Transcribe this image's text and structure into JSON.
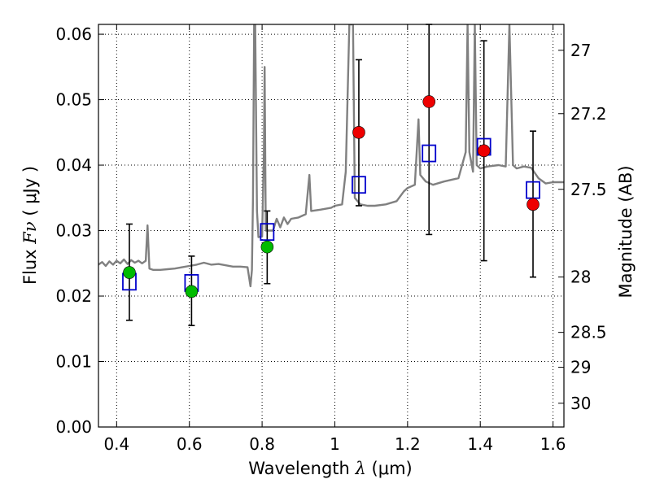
{
  "chart_data": {
    "type": "scatter",
    "xlabel": "Wavelength",
    "xlabel_symbol": "λ",
    "xlabel_unit": "(μm)",
    "ylabel": "Flux",
    "ylabel_symbol": "Fν",
    "ylabel_unit": "( μJy )",
    "ylabel_right": "Magnitude (AB)",
    "xlim": [
      0.35,
      1.63
    ],
    "ylim": [
      0.0,
      0.0615
    ],
    "grid": true,
    "grid_style": "dotted",
    "x_ticks": [
      {
        "value": 0.4,
        "label": "0.4"
      },
      {
        "value": 0.6,
        "label": "0.6"
      },
      {
        "value": 0.8,
        "label": "0.8"
      },
      {
        "value": 1.0,
        "label": "1"
      },
      {
        "value": 1.2,
        "label": "1.2"
      },
      {
        "value": 1.4,
        "label": "1.4"
      },
      {
        "value": 1.6,
        "label": "1.6"
      }
    ],
    "y_ticks": [
      {
        "value": 0.0,
        "label": "0.00"
      },
      {
        "value": 0.01,
        "label": "0.01"
      },
      {
        "value": 0.02,
        "label": "0.02"
      },
      {
        "value": 0.03,
        "label": "0.03"
      },
      {
        "value": 0.04,
        "label": "0.04"
      },
      {
        "value": 0.05,
        "label": "0.05"
      },
      {
        "value": 0.06,
        "label": "0.06"
      }
    ],
    "magnitude_ticks": [
      {
        "value": 27,
        "label": "27"
      },
      {
        "value": 27.2,
        "label": "27.2"
      },
      {
        "value": 27.5,
        "label": "27.5"
      },
      {
        "value": 28,
        "label": "28"
      },
      {
        "value": 28.5,
        "label": "28.5"
      },
      {
        "value": 29,
        "label": "29"
      },
      {
        "value": 30,
        "label": "30"
      }
    ],
    "observed": [
      {
        "x": 0.435,
        "y": 0.0236,
        "yerr_low": 0.0163,
        "yerr_high": 0.031,
        "color": "#00bb00"
      },
      {
        "x": 0.606,
        "y": 0.0207,
        "yerr_low": 0.0155,
        "yerr_high": 0.0261,
        "color": "#00bb00"
      },
      {
        "x": 0.814,
        "y": 0.0275,
        "yerr_low": 0.0219,
        "yerr_high": 0.033,
        "color": "#00bb00"
      },
      {
        "x": 1.066,
        "y": 0.045,
        "yerr_low": 0.0338,
        "yerr_high": 0.0561,
        "color": "#ee0000"
      },
      {
        "x": 1.259,
        "y": 0.0497,
        "yerr_low": 0.0294,
        "yerr_high": 0.0615,
        "color": "#ee0000"
      },
      {
        "x": 1.41,
        "y": 0.0422,
        "yerr_low": 0.0254,
        "yerr_high": 0.059,
        "color": "#ee0000"
      },
      {
        "x": 1.545,
        "y": 0.034,
        "yerr_low": 0.0229,
        "yerr_high": 0.0452,
        "color": "#ee0000"
      }
    ],
    "model_photometry": {
      "color": "#0000cc",
      "points": [
        {
          "x": 0.435,
          "y": 0.0222
        },
        {
          "x": 0.606,
          "y": 0.022
        },
        {
          "x": 0.814,
          "y": 0.0298
        },
        {
          "x": 1.066,
          "y": 0.037
        },
        {
          "x": 1.259,
          "y": 0.0418
        },
        {
          "x": 1.41,
          "y": 0.0428
        },
        {
          "x": 1.545,
          "y": 0.0362
        }
      ]
    },
    "sed_model": {
      "color": "#808080",
      "points": [
        [
          0.35,
          0.0248
        ],
        [
          0.36,
          0.0252
        ],
        [
          0.37,
          0.0246
        ],
        [
          0.38,
          0.0253
        ],
        [
          0.39,
          0.0248
        ],
        [
          0.4,
          0.0254
        ],
        [
          0.41,
          0.025
        ],
        [
          0.42,
          0.0256
        ],
        [
          0.43,
          0.0249
        ],
        [
          0.44,
          0.0255
        ],
        [
          0.45,
          0.0251
        ],
        [
          0.46,
          0.0254
        ],
        [
          0.47,
          0.025
        ],
        [
          0.48,
          0.0254
        ],
        [
          0.485,
          0.0308
        ],
        [
          0.49,
          0.0242
        ],
        [
          0.5,
          0.024
        ],
        [
          0.52,
          0.024
        ],
        [
          0.54,
          0.0241
        ],
        [
          0.56,
          0.0242
        ],
        [
          0.58,
          0.0244
        ],
        [
          0.6,
          0.0246
        ],
        [
          0.62,
          0.0248
        ],
        [
          0.64,
          0.0251
        ],
        [
          0.66,
          0.0248
        ],
        [
          0.68,
          0.0249
        ],
        [
          0.7,
          0.0247
        ],
        [
          0.72,
          0.0245
        ],
        [
          0.74,
          0.0245
        ],
        [
          0.76,
          0.0244
        ],
        [
          0.768,
          0.0215
        ],
        [
          0.772,
          0.024
        ],
        [
          0.775,
          0.035
        ],
        [
          0.778,
          0.0615
        ],
        [
          0.781,
          0.0615
        ],
        [
          0.786,
          0.033
        ],
        [
          0.79,
          0.029
        ],
        [
          0.8,
          0.0291
        ],
        [
          0.805,
          0.042
        ],
        [
          0.807,
          0.055
        ],
        [
          0.81,
          0.03
        ],
        [
          0.83,
          0.03
        ],
        [
          0.84,
          0.0318
        ],
        [
          0.85,
          0.0305
        ],
        [
          0.86,
          0.032
        ],
        [
          0.87,
          0.031
        ],
        [
          0.88,
          0.0318
        ],
        [
          0.9,
          0.032
        ],
        [
          0.92,
          0.0325
        ],
        [
          0.93,
          0.0385
        ],
        [
          0.935,
          0.033
        ],
        [
          0.96,
          0.0332
        ],
        [
          0.99,
          0.0335
        ],
        [
          1.0,
          0.0338
        ],
        [
          1.02,
          0.034
        ],
        [
          1.03,
          0.039
        ],
        [
          1.04,
          0.0615
        ],
        [
          1.05,
          0.0615
        ],
        [
          1.055,
          0.035
        ],
        [
          1.07,
          0.034
        ],
        [
          1.09,
          0.0338
        ],
        [
          1.11,
          0.0338
        ],
        [
          1.14,
          0.034
        ],
        [
          1.17,
          0.0345
        ],
        [
          1.19,
          0.036
        ],
        [
          1.2,
          0.0365
        ],
        [
          1.22,
          0.037
        ],
        [
          1.23,
          0.047
        ],
        [
          1.235,
          0.0385
        ],
        [
          1.25,
          0.0375
        ],
        [
          1.27,
          0.037
        ],
        [
          1.3,
          0.0375
        ],
        [
          1.34,
          0.038
        ],
        [
          1.36,
          0.042
        ],
        [
          1.365,
          0.0615
        ],
        [
          1.37,
          0.042
        ],
        [
          1.38,
          0.039
        ],
        [
          1.385,
          0.0615
        ],
        [
          1.39,
          0.04
        ],
        [
          1.4,
          0.0395
        ],
        [
          1.42,
          0.0398
        ],
        [
          1.45,
          0.04
        ],
        [
          1.47,
          0.0398
        ],
        [
          1.48,
          0.0615
        ],
        [
          1.49,
          0.04
        ],
        [
          1.5,
          0.0395
        ],
        [
          1.52,
          0.0398
        ],
        [
          1.54,
          0.0396
        ],
        [
          1.56,
          0.038
        ],
        [
          1.58,
          0.0372
        ],
        [
          1.6,
          0.0374
        ],
        [
          1.63,
          0.0374
        ]
      ]
    }
  }
}
